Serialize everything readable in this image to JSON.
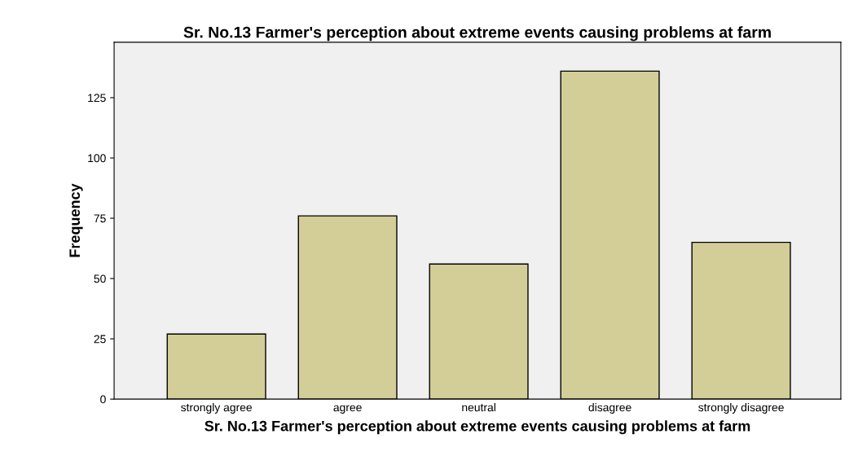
{
  "chart_data": {
    "type": "bar",
    "title": "Sr. No.13 Farmer's perception about extreme events causing problems at farm",
    "xlabel": "Sr. No.13 Farmer's perception about extreme events causing problems at farm",
    "ylabel": "Frequency",
    "categories": [
      "strongly agree",
      "agree",
      "neutral",
      "disagree",
      "strongly disagree"
    ],
    "values": [
      27,
      76,
      56,
      136,
      65
    ],
    "color": "#d3ce97",
    "ylim": [
      0,
      148
    ],
    "yticks": [
      0,
      25,
      50,
      75,
      100,
      125
    ],
    "grid": false,
    "legend": false
  }
}
